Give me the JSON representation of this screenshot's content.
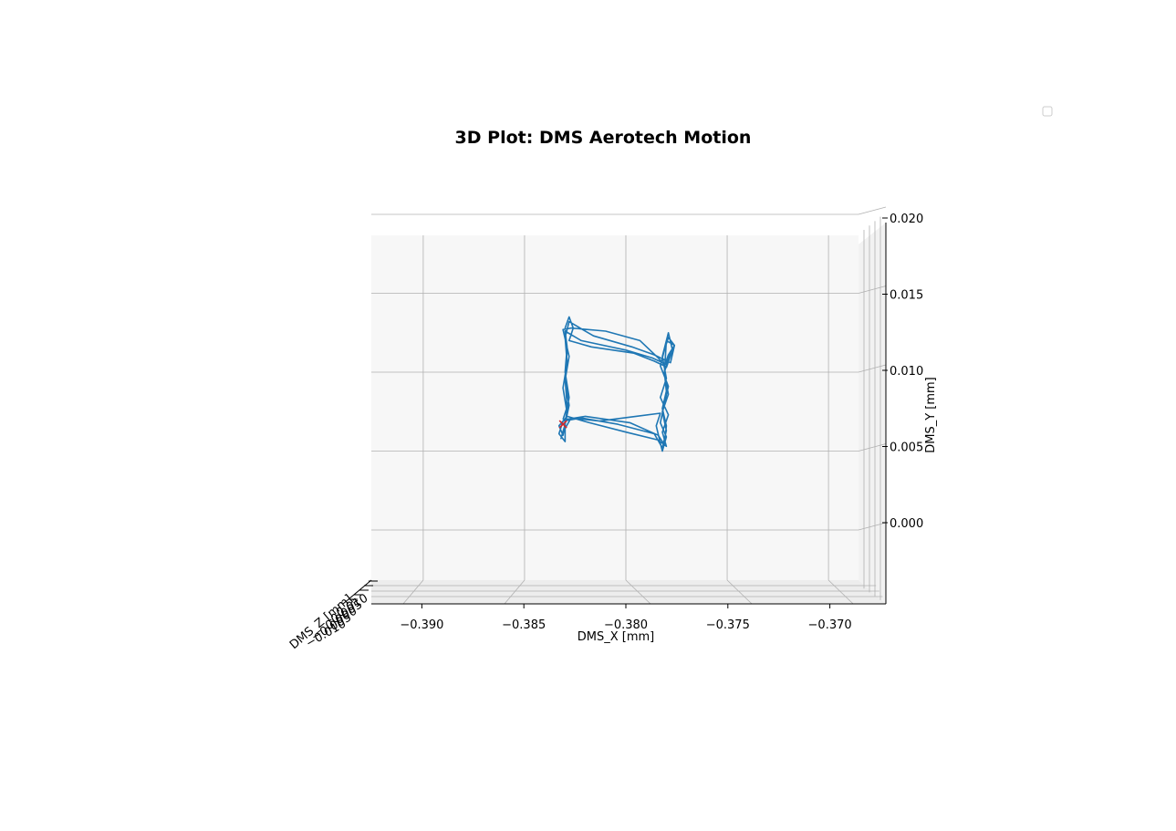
{
  "chart_data": {
    "type": "line",
    "projection": "3d",
    "title": "3D Plot: DMS Aerotech Motion",
    "xlabel": "DMS_X [mm]",
    "ylabel": "DMS_Y [mm]",
    "zlabel": "DMS_Z [mm]",
    "xlim": [
      -0.3915,
      -0.369
    ],
    "ylim": [
      -0.0024,
      0.0205
    ],
    "x_ticks": [
      -0.39,
      -0.385,
      -0.38,
      -0.375,
      -0.37
    ],
    "x_tick_labels": [
      "−0.390",
      "−0.385",
      "−0.380",
      "−0.375",
      "−0.370"
    ],
    "y_ticks": [
      0.0,
      0.005,
      0.01,
      0.015,
      0.02
    ],
    "y_tick_labels": [
      "0.000",
      "0.005",
      "0.010",
      "0.015",
      "0.020"
    ],
    "z_tick_labels": [
      "−0.010",
      "−0.005",
      "0.000",
      "0.005",
      "0.010"
    ],
    "grid": true,
    "legend": {
      "position": "top-right",
      "entries": []
    },
    "colors": {
      "trajectory": "#1f77b4",
      "marker": "#d62728",
      "grid": "#b0b0b0",
      "pane": "#f2f2f2"
    },
    "series": [
      {
        "values": [
          [
            -0.3831,
            0.007
          ],
          [
            -0.3829,
            0.0078
          ],
          [
            -0.383,
            0.0096
          ],
          [
            -0.3829,
            0.0113
          ],
          [
            -0.383,
            0.0128
          ],
          [
            -0.3828,
            0.0135
          ],
          [
            -0.3826,
            0.0128
          ],
          [
            -0.3828,
            0.012
          ],
          [
            -0.3817,
            0.0116
          ],
          [
            -0.3796,
            0.0112
          ],
          [
            -0.3786,
            0.0107
          ],
          [
            -0.3781,
            0.0104
          ],
          [
            -0.3779,
            0.0111
          ],
          [
            -0.3776,
            0.0117
          ],
          [
            -0.3779,
            0.0122
          ],
          [
            -0.3781,
            0.0114
          ],
          [
            -0.3783,
            0.0104
          ],
          [
            -0.3779,
            0.0091
          ],
          [
            -0.3781,
            0.008
          ],
          [
            -0.3783,
            0.0068
          ],
          [
            -0.378,
            0.0059
          ],
          [
            -0.3782,
            0.005
          ],
          [
            -0.3783,
            0.0055
          ],
          [
            -0.3785,
            0.0066
          ],
          [
            -0.3783,
            0.0074
          ],
          [
            -0.3795,
            0.0072
          ],
          [
            -0.3813,
            0.0069
          ],
          [
            -0.3827,
            0.0071
          ],
          [
            -0.3831,
            0.0062
          ],
          [
            -0.3832,
            0.0058
          ],
          [
            -0.383,
            0.0067
          ],
          [
            -0.3828,
            0.0079
          ],
          [
            -0.383,
            0.0095
          ],
          [
            -0.3828,
            0.011
          ],
          [
            -0.3831,
            0.0127
          ],
          [
            -0.3827,
            0.0128
          ],
          [
            -0.381,
            0.0126
          ],
          [
            -0.3793,
            0.012
          ],
          [
            -0.3784,
            0.0109
          ],
          [
            -0.378,
            0.0103
          ],
          [
            -0.3777,
            0.0114
          ],
          [
            -0.3779,
            0.0125
          ],
          [
            -0.3782,
            0.011
          ],
          [
            -0.378,
            0.0096
          ],
          [
            -0.3783,
            0.0084
          ],
          [
            -0.3779,
            0.0073
          ],
          [
            -0.3782,
            0.0062
          ],
          [
            -0.378,
            0.0053
          ],
          [
            -0.3784,
            0.0057
          ],
          [
            -0.38,
            0.0062
          ],
          [
            -0.3818,
            0.0068
          ],
          [
            -0.3829,
            0.0072
          ],
          [
            -0.3833,
            0.0066
          ],
          [
            -0.3831,
            0.006
          ],
          [
            -0.3829,
            0.0074
          ],
          [
            -0.3831,
            0.009
          ],
          [
            -0.3829,
            0.0106
          ],
          [
            -0.383,
            0.0122
          ],
          [
            -0.3828,
            0.0132
          ],
          [
            -0.3816,
            0.0123
          ],
          [
            -0.3797,
            0.0116
          ],
          [
            -0.3786,
            0.0111
          ],
          [
            -0.3778,
            0.0106
          ],
          [
            -0.3776,
            0.0117
          ],
          [
            -0.378,
            0.012
          ],
          [
            -0.3781,
            0.0099
          ],
          [
            -0.3779,
            0.0086
          ],
          [
            -0.3782,
            0.0075
          ],
          [
            -0.378,
            0.0063
          ],
          [
            -0.3782,
            0.0052
          ],
          [
            -0.3786,
            0.0061
          ],
          [
            -0.3804,
            0.0067
          ],
          [
            -0.3822,
            0.0071
          ],
          [
            -0.3831,
            0.0069
          ],
          [
            -0.3833,
            0.0061
          ],
          [
            -0.383,
            0.0056
          ],
          [
            -0.383,
            0.0068
          ],
          [
            -0.3828,
            0.0084
          ],
          [
            -0.383,
            0.01
          ],
          [
            -0.3829,
            0.0116
          ],
          [
            -0.383,
            0.0126
          ],
          [
            -0.3822,
            0.012
          ],
          [
            -0.38,
            0.0114
          ],
          [
            -0.3787,
            0.0109
          ],
          [
            -0.378,
            0.0105
          ],
          [
            -0.3778,
            0.0112
          ],
          [
            -0.3781,
            0.01
          ],
          [
            -0.378,
            0.0088
          ],
          [
            -0.3782,
            0.0077
          ],
          [
            -0.378,
            0.0066
          ],
          [
            -0.3781,
            0.0054
          ],
          [
            -0.3784,
            0.006
          ],
          [
            -0.3798,
            0.0068
          ],
          [
            -0.382,
            0.0072
          ],
          [
            -0.383,
            0.007
          ]
        ]
      }
    ],
    "markers": [
      {
        "symbol": "x",
        "x": -0.3831,
        "y": 0.0067
      }
    ]
  }
}
